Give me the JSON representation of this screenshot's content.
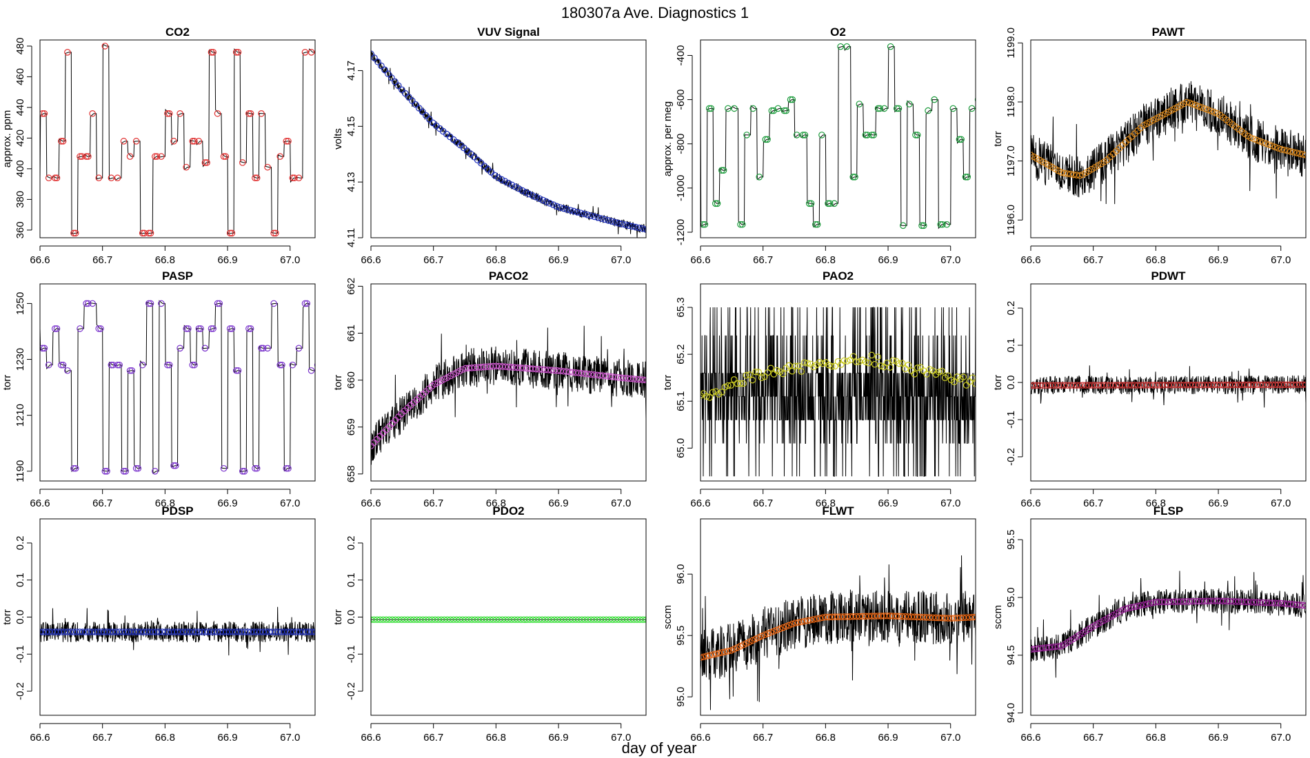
{
  "figure": {
    "title": "180307a   Ave. Diagnostics 1",
    "xlabel": "day of year"
  },
  "chart_data": [
    {
      "type": "line",
      "title": "CO2",
      "ylabel": "approx. ppm",
      "xlim": [
        66.6,
        67.04
      ],
      "ylim": [
        355,
        484
      ],
      "xticks": [
        66.6,
        66.7,
        66.8,
        66.9,
        67.0
      ],
      "xtick_labels": [
        "66.6",
        "66.7",
        "66.8",
        "66.9",
        "67.0"
      ],
      "yticks": [
        360,
        380,
        400,
        420,
        440,
        460,
        480
      ],
      "ytick_labels": [
        "360",
        "380",
        "400",
        "420",
        "440",
        "460",
        "480"
      ],
      "pattern": "steps",
      "levels": [
        394,
        418,
        436,
        476,
        401,
        358,
        408,
        480,
        404
      ],
      "noise": 0,
      "marker_color": "#e03030",
      "marker_every": 1,
      "seed": 11
    },
    {
      "type": "line",
      "title": "VUV Signal",
      "ylabel": "volts",
      "xlim": [
        66.6,
        67.04
      ],
      "ylim": [
        4.11,
        4.181
      ],
      "xticks": [
        66.6,
        66.7,
        66.8,
        66.9,
        67.0
      ],
      "xtick_labels": [
        "66.6",
        "66.7",
        "66.8",
        "66.9",
        "67.0"
      ],
      "yticks": [
        4.11,
        4.13,
        4.15,
        4.17
      ],
      "ytick_labels": [
        "4.11",
        "4.13",
        "4.15",
        "4.17"
      ],
      "pattern": "trend",
      "trend": [
        [
          66.6,
          4.176
        ],
        [
          66.65,
          4.163
        ],
        [
          66.7,
          4.151
        ],
        [
          66.75,
          4.142
        ],
        [
          66.8,
          4.132
        ],
        [
          66.85,
          4.126
        ],
        [
          66.9,
          4.121
        ],
        [
          66.95,
          4.118
        ],
        [
          67.0,
          4.115
        ],
        [
          67.04,
          4.113
        ]
      ],
      "noise": 0.0016,
      "marker_color": "#2233bb",
      "marker_every": 2,
      "seed": 22
    },
    {
      "type": "line",
      "title": "O2",
      "ylabel": "approx. per meg",
      "xlim": [
        66.6,
        67.04
      ],
      "ylim": [
        -1225,
        -330
      ],
      "xticks": [
        66.6,
        66.7,
        66.8,
        66.9,
        67.0
      ],
      "xtick_labels": [
        "66.6",
        "66.7",
        "66.8",
        "66.9",
        "67.0"
      ],
      "yticks": [
        -1200,
        -1000,
        -800,
        -600,
        -400
      ],
      "ytick_labels": [
        "-1200",
        "-1000",
        "-800",
        "-600",
        "-400"
      ],
      "pattern": "steps",
      "levels": [
        -600,
        -760,
        -1165,
        -360,
        -650,
        -920,
        -1070,
        -620,
        -780,
        -1170,
        -640,
        -950
      ],
      "noise": 0,
      "marker_color": "#1a9a3a",
      "marker_every": 1,
      "seed": 33
    },
    {
      "type": "line",
      "title": "PAWT",
      "ylabel": "torr",
      "xlim": [
        66.6,
        67.04
      ],
      "ylim": [
        1195.7,
        1199.05
      ],
      "xticks": [
        66.6,
        66.7,
        66.8,
        66.9,
        67.0
      ],
      "xtick_labels": [
        "66.6",
        "66.7",
        "66.8",
        "66.9",
        "67.0"
      ],
      "yticks": [
        1196,
        1197,
        1198,
        1199
      ],
      "ytick_labels": [
        "1196.0",
        "1197.0",
        "1198.0",
        "1199.0"
      ],
      "pattern": "trend",
      "trend": [
        [
          66.6,
          1197.1
        ],
        [
          66.65,
          1196.8
        ],
        [
          66.68,
          1196.75
        ],
        [
          66.72,
          1197.0
        ],
        [
          66.78,
          1197.6
        ],
        [
          66.85,
          1198.0
        ],
        [
          66.9,
          1197.8
        ],
        [
          66.95,
          1197.4
        ],
        [
          67.0,
          1197.2
        ],
        [
          67.04,
          1197.1
        ]
      ],
      "noise": 0.38,
      "marker_color": "#e08a1a",
      "marker_every": 1,
      "seed": 44
    },
    {
      "type": "line",
      "title": "PASP",
      "ylabel": "torr",
      "xlim": [
        66.6,
        67.04
      ],
      "ylim": [
        1186.5,
        1257
      ],
      "xticks": [
        66.6,
        66.7,
        66.8,
        66.9,
        67.0
      ],
      "xtick_labels": [
        "66.6",
        "66.7",
        "66.8",
        "66.9",
        "67.0"
      ],
      "yticks": [
        1190,
        1210,
        1230,
        1250
      ],
      "ytick_labels": [
        "1190",
        "1210",
        "1230",
        "1250"
      ],
      "pattern": "steps",
      "levels": [
        1241,
        1191,
        1234,
        1226,
        1250,
        1190,
        1228,
        1241,
        1192
      ],
      "noise": 0,
      "marker_color": "#7a33cc",
      "marker_every": 1,
      "seed": 55
    },
    {
      "type": "line",
      "title": "PACO2",
      "ylabel": "torr",
      "xlim": [
        66.6,
        67.04
      ],
      "ylim": [
        657.85,
        662.05
      ],
      "xticks": [
        66.6,
        66.7,
        66.8,
        66.9,
        67.0
      ],
      "xtick_labels": [
        "66.6",
        "66.7",
        "66.8",
        "66.9",
        "67.0"
      ],
      "yticks": [
        658,
        659,
        660,
        661,
        662
      ],
      "ytick_labels": [
        "658",
        "659",
        "660",
        "661",
        "662"
      ],
      "pattern": "trend",
      "trend": [
        [
          66.6,
          658.6
        ],
        [
          66.65,
          659.3
        ],
        [
          66.7,
          659.9
        ],
        [
          66.75,
          660.25
        ],
        [
          66.8,
          660.3
        ],
        [
          66.9,
          660.2
        ],
        [
          67.0,
          660.05
        ],
        [
          67.04,
          660.0
        ]
      ],
      "noise": 0.42,
      "marker_color": "#cc55cc",
      "marker_every": 1,
      "seed": 66
    },
    {
      "type": "line",
      "title": "PAO2",
      "ylabel": "torr",
      "xlim": [
        66.6,
        67.04
      ],
      "ylim": [
        64.93,
        65.35
      ],
      "xticks": [
        66.6,
        66.7,
        66.8,
        66.9,
        67.0
      ],
      "xtick_labels": [
        "66.6",
        "66.7",
        "66.8",
        "66.9",
        "67.0"
      ],
      "yticks": [
        65.0,
        65.1,
        65.2,
        65.3
      ],
      "ytick_labels": [
        "65.0",
        "65.1",
        "65.2",
        "65.3"
      ],
      "pattern": "quantized",
      "trend": [
        [
          66.6,
          65.11
        ],
        [
          66.7,
          65.16
        ],
        [
          66.8,
          65.18
        ],
        [
          66.87,
          65.19
        ],
        [
          67.0,
          65.15
        ],
        [
          67.04,
          65.14
        ]
      ],
      "quant_levels": [
        64.94,
        65.01,
        65.06,
        65.11,
        65.16,
        65.24,
        65.3
      ],
      "noise": 0,
      "marker_color": "#cccc22",
      "marker_every": 1,
      "seed": 77
    },
    {
      "type": "line",
      "title": "PDWT",
      "ylabel": "torr",
      "xlim": [
        66.6,
        67.04
      ],
      "ylim": [
        -0.265,
        0.265
      ],
      "xticks": [
        66.6,
        66.7,
        66.8,
        66.9,
        67.0
      ],
      "xtick_labels": [
        "66.6",
        "66.7",
        "66.8",
        "66.9",
        "67.0"
      ],
      "yticks": [
        -0.2,
        -0.1,
        0.0,
        0.1,
        0.2
      ],
      "ytick_labels": [
        "-0.2",
        "-0.1",
        "0.0",
        "0.1",
        "0.2"
      ],
      "pattern": "trend",
      "trend": [
        [
          66.6,
          -0.008
        ],
        [
          67.04,
          -0.006
        ]
      ],
      "noise": 0.025,
      "marker_color": "#cc3333",
      "marker_every": 1,
      "seed": 88
    },
    {
      "type": "line",
      "title": "PDSP",
      "ylabel": "torr",
      "xlim": [
        66.6,
        67.04
      ],
      "ylim": [
        -0.265,
        0.265
      ],
      "xticks": [
        66.6,
        66.7,
        66.8,
        66.9,
        67.0
      ],
      "xtick_labels": [
        "66.6",
        "66.7",
        "66.8",
        "66.9",
        "67.0"
      ],
      "yticks": [
        -0.2,
        -0.1,
        0.0,
        0.1,
        0.2
      ],
      "ytick_labels": [
        "-0.2",
        "-0.1",
        "0.0",
        "0.1",
        "0.2"
      ],
      "pattern": "trend",
      "trend": [
        [
          66.6,
          -0.04
        ],
        [
          67.04,
          -0.04
        ]
      ],
      "noise": 0.028,
      "marker_color": "#2233bb",
      "marker_every": 1,
      "seed": 99
    },
    {
      "type": "line",
      "title": "PDO2",
      "ylabel": "torr",
      "xlim": [
        66.6,
        67.04
      ],
      "ylim": [
        -0.265,
        0.265
      ],
      "xticks": [
        66.6,
        66.7,
        66.8,
        66.9,
        67.0
      ],
      "xtick_labels": [
        "66.6",
        "66.7",
        "66.8",
        "66.9",
        "67.0"
      ],
      "yticks": [
        -0.2,
        -0.1,
        0.0,
        0.1,
        0.2
      ],
      "ytick_labels": [
        "-0.2",
        "-0.1",
        "0.0",
        "0.1",
        "0.2"
      ],
      "pattern": "trend",
      "trend": [
        [
          66.6,
          -0.007
        ],
        [
          67.04,
          -0.007
        ]
      ],
      "noise": 0.0,
      "marker_color": "#33dd33",
      "marker_every": 1,
      "seed": 111
    },
    {
      "type": "line",
      "title": "FLWT",
      "ylabel": "sccm",
      "xlim": [
        66.6,
        67.04
      ],
      "ylim": [
        94.85,
        96.45
      ],
      "xticks": [
        66.6,
        66.7,
        66.8,
        66.9,
        67.0
      ],
      "xtick_labels": [
        "66.6",
        "66.7",
        "66.8",
        "66.9",
        "67.0"
      ],
      "yticks": [
        95.0,
        95.5,
        96.0
      ],
      "ytick_labels": [
        "95.0",
        "95.5",
        "96.0"
      ],
      "pattern": "trend",
      "trend": [
        [
          66.6,
          95.32
        ],
        [
          66.65,
          95.38
        ],
        [
          66.7,
          95.5
        ],
        [
          66.75,
          95.6
        ],
        [
          66.8,
          95.65
        ],
        [
          66.9,
          95.66
        ],
        [
          67.0,
          95.64
        ],
        [
          67.04,
          95.65
        ]
      ],
      "noise": 0.22,
      "marker_color": "#ee6611",
      "marker_every": 1,
      "seed": 122
    },
    {
      "type": "line",
      "title": "FLSP",
      "ylabel": "sccm",
      "xlim": [
        66.6,
        67.04
      ],
      "ylim": [
        93.98,
        95.68
      ],
      "xticks": [
        66.6,
        66.7,
        66.8,
        66.9,
        67.0
      ],
      "xtick_labels": [
        "66.6",
        "66.7",
        "66.8",
        "66.9",
        "67.0"
      ],
      "yticks": [
        94.0,
        94.5,
        95.0,
        95.5
      ],
      "ytick_labels": [
        "94.0",
        "94.5",
        "95.0",
        "95.5"
      ],
      "pattern": "trend",
      "trend": [
        [
          66.6,
          94.55
        ],
        [
          66.65,
          94.58
        ],
        [
          66.7,
          94.75
        ],
        [
          66.75,
          94.9
        ],
        [
          66.8,
          94.96
        ],
        [
          66.9,
          94.97
        ],
        [
          67.0,
          94.95
        ],
        [
          67.04,
          94.93
        ]
      ],
      "noise": 0.11,
      "marker_color": "#992299",
      "marker_every": 1,
      "seed": 133
    }
  ]
}
